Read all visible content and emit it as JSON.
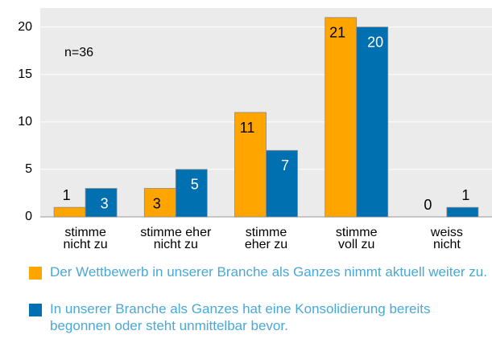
{
  "chart_data": {
    "type": "bar",
    "categories": [
      [
        "stimme",
        "nicht zu"
      ],
      [
        "stimme eher",
        "nicht zu"
      ],
      [
        "stimme",
        "eher zu"
      ],
      [
        "stimme",
        "voll zu"
      ],
      [
        "weiss",
        "nicht"
      ]
    ],
    "series": [
      {
        "name": "Der Wettbewerb in unserer Branche als Ganzes nimmt aktuell weiter zu.",
        "color": "#ffa500",
        "values": [
          1,
          3,
          11,
          21,
          0
        ]
      },
      {
        "name": "In unserer Branche als Ganzes hat eine Konsolidierung bereits begonnen oder steht unmittelbar bevor.",
        "color": "#0070b0",
        "values": [
          3,
          5,
          7,
          20,
          1
        ]
      }
    ],
    "annotation": "n=36",
    "ylim": [
      0,
      22
    ],
    "yticks": [
      0,
      5,
      10,
      15,
      20
    ],
    "grid": true
  }
}
